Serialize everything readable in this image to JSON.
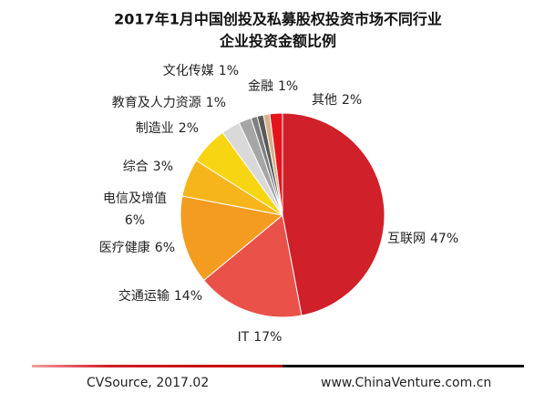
{
  "chart_data": {
    "type": "pie",
    "title": [
      "2017年1月中国创投及私募股权投资市场不同行业",
      "企业投资金额比例"
    ],
    "categories": [
      "互联网",
      "IT",
      "交通运输",
      "医疗健康",
      "电信及增值",
      "综合",
      "制造业",
      "教育及人力资源",
      "文化传媒",
      "金融",
      "其他"
    ],
    "values": [
      47,
      17,
      14,
      6,
      6,
      3,
      2,
      1,
      1,
      1,
      2
    ],
    "value_labels": [
      "47%",
      "17%",
      "14%",
      "6%",
      "6%",
      "3%",
      "2%",
      "1%",
      "1%",
      "1%",
      "2%"
    ],
    "colors": [
      "#d0202a",
      "#ea5148",
      "#f39c1f",
      "#f7b51c",
      "#f8d512",
      "#d9d9d9",
      "#a6a6a6",
      "#7f7f7f",
      "#595959",
      "#d8b088",
      "#e5141c"
    ],
    "source": "CVSource, 2017.02",
    "website": "www.ChinaVenture.com.cn"
  }
}
